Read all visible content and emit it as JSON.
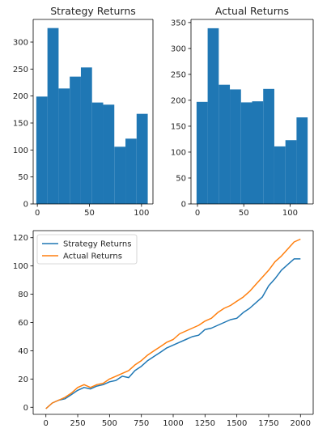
{
  "chart_data": [
    {
      "type": "bar",
      "title": "Strategy Returns",
      "bin_edges": [
        -1.0,
        9.7,
        20.4,
        31.1,
        41.8,
        52.5,
        63.2,
        73.9,
        84.6,
        95.3,
        106.0
      ],
      "values": [
        199,
        326,
        214,
        236,
        253,
        188,
        184,
        106,
        121,
        167
      ],
      "xlim": [
        -4,
        111
      ],
      "ylim": [
        0,
        342
      ],
      "xticks": [
        0,
        50,
        100
      ],
      "yticks": [
        0,
        50,
        100,
        150,
        200,
        250,
        300
      ],
      "color": "#1f77b4",
      "grid": false
    },
    {
      "type": "bar",
      "title": "Actual Returns",
      "bin_edges": [
        -1.0,
        11.0,
        23.0,
        35.0,
        47.0,
        59.0,
        71.0,
        83.0,
        95.0,
        107.0,
        119.0
      ],
      "values": [
        197,
        339,
        230,
        221,
        196,
        198,
        222,
        111,
        123,
        167
      ],
      "xlim": [
        -7,
        125
      ],
      "ylim": [
        0,
        356
      ],
      "xticks": [
        0,
        50,
        100
      ],
      "yticks": [
        0,
        50,
        100,
        150,
        200,
        250,
        300,
        350
      ],
      "color": "#1f77b4",
      "grid": false
    },
    {
      "type": "line",
      "xlim": [
        -100,
        2100
      ],
      "ylim": [
        -5,
        125
      ],
      "xticks": [
        0,
        250,
        500,
        750,
        1000,
        1250,
        1500,
        1750,
        2000
      ],
      "yticks": [
        0,
        20,
        40,
        60,
        80,
        100,
        120
      ],
      "legend": "upper-left",
      "grid": false,
      "series": [
        {
          "name": "Strategy Returns",
          "color": "#1f77b4",
          "x": [
            0,
            50,
            100,
            150,
            200,
            250,
            300,
            350,
            400,
            450,
            500,
            550,
            600,
            650,
            700,
            750,
            800,
            850,
            900,
            950,
            1000,
            1050,
            1100,
            1150,
            1200,
            1250,
            1300,
            1350,
            1400,
            1450,
            1500,
            1550,
            1600,
            1650,
            1700,
            1750,
            1800,
            1850,
            1900,
            1950,
            2000
          ],
          "y": [
            -1,
            3,
            5,
            6,
            9,
            12,
            14,
            13,
            15,
            16,
            18,
            19,
            22,
            21,
            26,
            29,
            33,
            36,
            39,
            42,
            44,
            46,
            48,
            50,
            51,
            55,
            56,
            58,
            60,
            62,
            63,
            67,
            70,
            74,
            78,
            86,
            91,
            97,
            101,
            105,
            105
          ]
        },
        {
          "name": "Actual Returns",
          "color": "#ff7f0e",
          "x": [
            0,
            50,
            100,
            150,
            200,
            250,
            300,
            350,
            400,
            450,
            500,
            550,
            600,
            650,
            700,
            750,
            800,
            850,
            900,
            950,
            1000,
            1050,
            1100,
            1150,
            1200,
            1250,
            1300,
            1350,
            1400,
            1450,
            1500,
            1550,
            1600,
            1650,
            1700,
            1750,
            1800,
            1850,
            1900,
            1950,
            2000
          ],
          "y": [
            -1,
            3,
            5,
            7,
            10,
            14,
            16,
            14,
            16,
            17,
            20,
            22,
            24,
            26,
            30,
            33,
            37,
            40,
            43,
            46,
            48,
            52,
            54,
            56,
            58,
            61,
            63,
            67,
            70,
            72,
            75,
            78,
            82,
            87,
            92,
            97,
            103,
            107,
            112,
            117,
            119
          ]
        }
      ]
    }
  ]
}
